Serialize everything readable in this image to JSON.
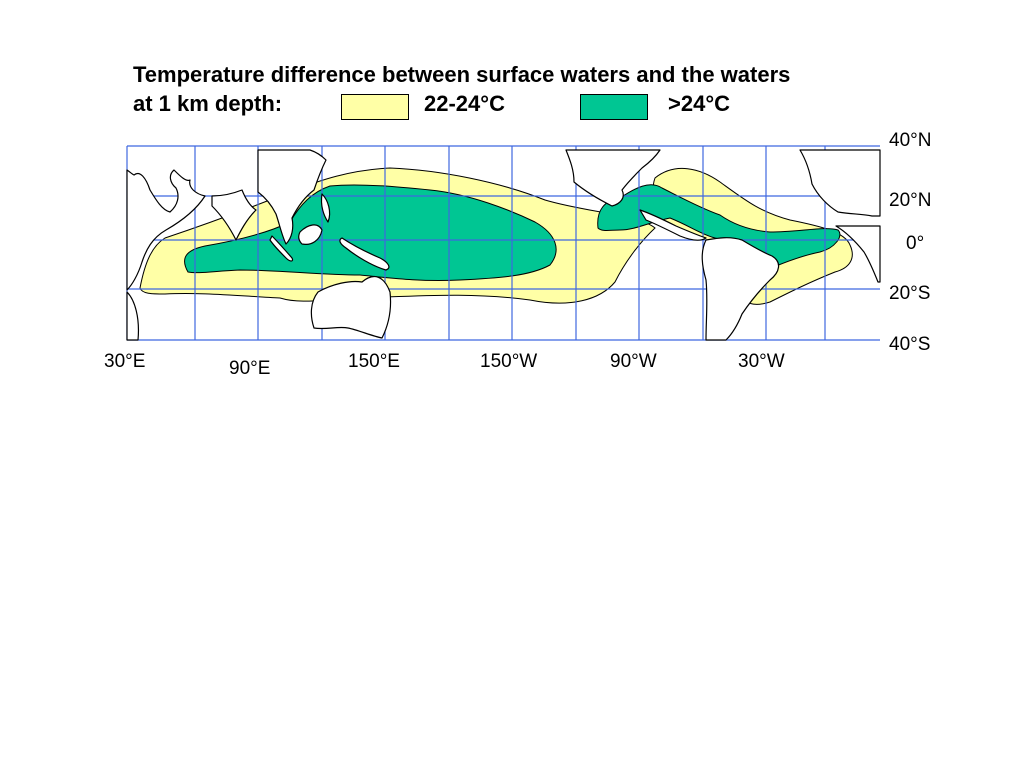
{
  "title": {
    "line1": "Temperature difference between surface waters and the waters",
    "line2": "at 1 km depth:"
  },
  "legend": [
    {
      "label": "22-24°C",
      "color": "#ffffa6"
    },
    {
      "label": ">24°C",
      "color": "#00c693"
    }
  ],
  "lat_labels": [
    "40°N",
    "20°N",
    "0°",
    "20°S",
    "40°S"
  ],
  "lon_labels": [
    "30°E",
    "90°E",
    "150°E",
    "150°W",
    "90°W",
    "30°W"
  ],
  "colors": {
    "grid": "#3f67e0",
    "coast": "#000000",
    "warm_zone": "#ffffa6",
    "hot_zone": "#00c693"
  }
}
